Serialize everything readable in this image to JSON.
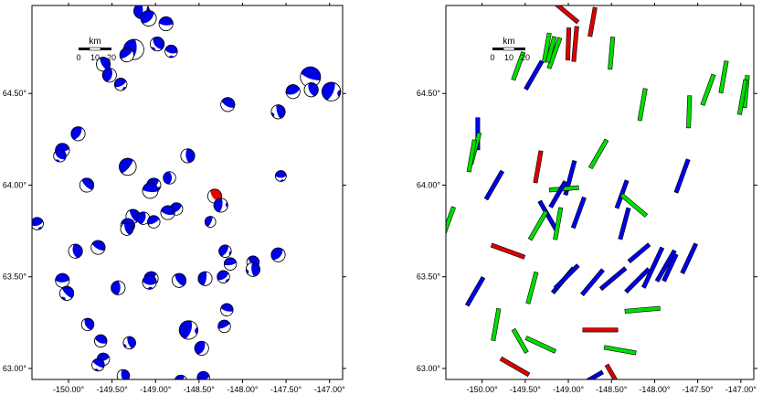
{
  "colors": {
    "focal_primary": "#0000e6",
    "focal_highlight": "#e60000",
    "axis_ok": "#00dd00",
    "axis_flagged": "#dd0000",
    "axis_blue": "#0000e6",
    "frame": "#000000"
  },
  "shared_axes": {
    "lat_ticks": [
      "63.00°",
      "63.50°",
      "64.00°",
      "64.50°"
    ],
    "lon_ticks": [
      "-150.00°",
      "-149.50°",
      "-149.00°",
      "-148.50°",
      "-148.00°",
      "-147.50°",
      "-147.00°"
    ],
    "lat_range": [
      62.94,
      64.98
    ],
    "lon_range": [
      -150.42,
      -146.85
    ]
  },
  "panels": [
    {
      "name": "focal-mechanism-map",
      "scale_bar": {
        "title": "km",
        "ticks": [
          "0",
          "10",
          "20"
        ]
      },
      "events": [
        {
          "lon": -149.16,
          "lat": 64.95,
          "size": 1.0
        },
        {
          "lon": -149.08,
          "lat": 64.91,
          "size": 1.0
        },
        {
          "lon": -148.88,
          "lat": 64.88,
          "size": 0.9
        },
        {
          "lon": -148.98,
          "lat": 64.77,
          "size": 0.9
        },
        {
          "lon": -149.25,
          "lat": 64.74,
          "size": 1.3
        },
        {
          "lon": -149.33,
          "lat": 64.71,
          "size": 0.9
        },
        {
          "lon": -148.82,
          "lat": 64.73,
          "size": 0.8
        },
        {
          "lon": -149.6,
          "lat": 64.66,
          "size": 0.9
        },
        {
          "lon": -149.53,
          "lat": 64.6,
          "size": 0.9
        },
        {
          "lon": -149.4,
          "lat": 64.55,
          "size": 0.8
        },
        {
          "lon": -147.22,
          "lat": 64.59,
          "size": 1.3
        },
        {
          "lon": -147.21,
          "lat": 64.52,
          "size": 0.9
        },
        {
          "lon": -146.98,
          "lat": 64.51,
          "size": 1.2
        },
        {
          "lon": -147.42,
          "lat": 64.51,
          "size": 0.9
        },
        {
          "lon": -148.17,
          "lat": 64.44,
          "size": 0.9
        },
        {
          "lon": -147.59,
          "lat": 64.4,
          "size": 0.9
        },
        {
          "lon": -149.89,
          "lat": 64.28,
          "size": 0.9
        },
        {
          "lon": -150.07,
          "lat": 64.19,
          "size": 0.9
        },
        {
          "lon": -150.1,
          "lat": 64.16,
          "size": 0.8
        },
        {
          "lon": -148.63,
          "lat": 64.16,
          "size": 0.9
        },
        {
          "lon": -149.32,
          "lat": 64.1,
          "size": 1.1
        },
        {
          "lon": -147.56,
          "lat": 64.05,
          "size": 0.7
        },
        {
          "lon": -149.79,
          "lat": 64.0,
          "size": 0.9
        },
        {
          "lon": -148.84,
          "lat": 64.04,
          "size": 0.8
        },
        {
          "lon": -149.02,
          "lat": 64.0,
          "size": 0.9
        },
        {
          "lon": -149.06,
          "lat": 63.97,
          "size": 1.0
        },
        {
          "lon": -148.32,
          "lat": 63.94,
          "size": 0.9,
          "highlight": true
        },
        {
          "lon": -148.25,
          "lat": 63.89,
          "size": 0.9
        },
        {
          "lon": -148.76,
          "lat": 63.87,
          "size": 0.8
        },
        {
          "lon": -148.86,
          "lat": 63.85,
          "size": 0.9
        },
        {
          "lon": -149.26,
          "lat": 63.83,
          "size": 0.9
        },
        {
          "lon": -149.14,
          "lat": 63.82,
          "size": 0.8
        },
        {
          "lon": -149.02,
          "lat": 63.8,
          "size": 0.8
        },
        {
          "lon": -149.32,
          "lat": 63.78,
          "size": 0.9
        },
        {
          "lon": -149.33,
          "lat": 63.76,
          "size": 0.8
        },
        {
          "lon": -148.37,
          "lat": 63.8,
          "size": 0.7
        },
        {
          "lon": -150.36,
          "lat": 63.79,
          "size": 0.8
        },
        {
          "lon": -149.66,
          "lat": 63.66,
          "size": 0.9
        },
        {
          "lon": -149.92,
          "lat": 63.64,
          "size": 0.9
        },
        {
          "lon": -148.2,
          "lat": 63.64,
          "size": 0.8
        },
        {
          "lon": -148.14,
          "lat": 63.57,
          "size": 0.8
        },
        {
          "lon": -147.88,
          "lat": 63.58,
          "size": 0.8
        },
        {
          "lon": -147.88,
          "lat": 63.54,
          "size": 0.9
        },
        {
          "lon": -147.59,
          "lat": 63.62,
          "size": 0.9
        },
        {
          "lon": -150.07,
          "lat": 63.48,
          "size": 0.9
        },
        {
          "lon": -150.02,
          "lat": 63.41,
          "size": 0.9
        },
        {
          "lon": -149.43,
          "lat": 63.44,
          "size": 0.9
        },
        {
          "lon": -149.05,
          "lat": 63.49,
          "size": 0.9
        },
        {
          "lon": -149.07,
          "lat": 63.47,
          "size": 0.9
        },
        {
          "lon": -148.73,
          "lat": 63.48,
          "size": 0.9
        },
        {
          "lon": -148.43,
          "lat": 63.49,
          "size": 0.9
        },
        {
          "lon": -148.22,
          "lat": 63.5,
          "size": 0.8
        },
        {
          "lon": -148.18,
          "lat": 63.32,
          "size": 0.8
        },
        {
          "lon": -149.78,
          "lat": 63.24,
          "size": 0.8
        },
        {
          "lon": -148.62,
          "lat": 63.21,
          "size": 1.2
        },
        {
          "lon": -148.21,
          "lat": 63.23,
          "size": 0.8
        },
        {
          "lon": -149.63,
          "lat": 63.15,
          "size": 0.8
        },
        {
          "lon": -149.3,
          "lat": 63.14,
          "size": 0.8
        },
        {
          "lon": -148.47,
          "lat": 63.11,
          "size": 0.9
        },
        {
          "lon": -149.6,
          "lat": 63.05,
          "size": 0.8
        },
        {
          "lon": -149.66,
          "lat": 63.02,
          "size": 0.8
        },
        {
          "lon": -149.37,
          "lat": 62.96,
          "size": 0.8
        },
        {
          "lon": -148.71,
          "lat": 62.93,
          "size": 0.8
        },
        {
          "lon": -148.45,
          "lat": 62.95,
          "size": 0.8
        }
      ]
    },
    {
      "name": "axis-orientation-map",
      "scale_bar": {
        "title": "km",
        "ticks": [
          "0",
          "10",
          "20"
        ]
      },
      "bars": [
        {
          "lon": -149.02,
          "lat": 64.94,
          "angle": -40,
          "len": 20,
          "c": "red"
        },
        {
          "lon": -148.72,
          "lat": 64.89,
          "angle": 80,
          "len": 20,
          "c": "red"
        },
        {
          "lon": -149.0,
          "lat": 64.77,
          "angle": 88,
          "len": 22,
          "c": "red"
        },
        {
          "lon": -148.92,
          "lat": 64.77,
          "angle": 85,
          "len": 24,
          "c": "red"
        },
        {
          "lon": -149.25,
          "lat": 64.75,
          "angle": 80,
          "len": 20,
          "c": "green"
        },
        {
          "lon": -149.16,
          "lat": 64.72,
          "angle": 70,
          "len": 22,
          "c": "green"
        },
        {
          "lon": -149.2,
          "lat": 64.74,
          "angle": 75,
          "len": 18,
          "c": "green"
        },
        {
          "lon": -148.5,
          "lat": 64.72,
          "angle": 85,
          "len": 22,
          "c": "green"
        },
        {
          "lon": -149.58,
          "lat": 64.65,
          "angle": 70,
          "len": 20,
          "c": "green"
        },
        {
          "lon": -149.4,
          "lat": 64.6,
          "angle": 60,
          "len": 22,
          "c": "blue"
        },
        {
          "lon": -147.2,
          "lat": 64.59,
          "angle": 80,
          "len": 22,
          "c": "green"
        },
        {
          "lon": -147.38,
          "lat": 64.52,
          "angle": 70,
          "len": 22,
          "c": "green"
        },
        {
          "lon": -146.94,
          "lat": 64.51,
          "angle": 85,
          "len": 22,
          "c": "green"
        },
        {
          "lon": -146.98,
          "lat": 64.48,
          "angle": 80,
          "len": 24,
          "c": "green"
        },
        {
          "lon": -148.14,
          "lat": 64.44,
          "angle": 80,
          "len": 22,
          "c": "green"
        },
        {
          "lon": -147.6,
          "lat": 64.4,
          "angle": 88,
          "len": 22,
          "c": "green"
        },
        {
          "lon": -150.05,
          "lat": 64.28,
          "angle": 90,
          "len": 22,
          "c": "blue"
        },
        {
          "lon": -150.08,
          "lat": 64.2,
          "angle": 75,
          "len": 22,
          "c": "green"
        },
        {
          "lon": -150.12,
          "lat": 64.16,
          "angle": 80,
          "len": 22,
          "c": "green"
        },
        {
          "lon": -148.65,
          "lat": 64.17,
          "angle": 60,
          "len": 22,
          "c": "green"
        },
        {
          "lon": -149.35,
          "lat": 64.1,
          "angle": 80,
          "len": 22,
          "c": "red"
        },
        {
          "lon": -147.68,
          "lat": 64.05,
          "angle": 70,
          "len": 24,
          "c": "blue"
        },
        {
          "lon": -149.86,
          "lat": 64.0,
          "angle": 60,
          "len": 22,
          "c": "blue"
        },
        {
          "lon": -148.98,
          "lat": 64.04,
          "angle": 75,
          "len": 24,
          "c": "blue"
        },
        {
          "lon": -149.05,
          "lat": 63.98,
          "angle": 5,
          "len": 20,
          "c": "green"
        },
        {
          "lon": -149.12,
          "lat": 63.95,
          "angle": 60,
          "len": 20,
          "c": "blue"
        },
        {
          "lon": -148.38,
          "lat": 63.95,
          "angle": 70,
          "len": 20,
          "c": "blue"
        },
        {
          "lon": -148.24,
          "lat": 63.89,
          "angle": -40,
          "len": 22,
          "c": "green"
        },
        {
          "lon": -148.88,
          "lat": 63.85,
          "angle": 70,
          "len": 22,
          "c": "blue"
        },
        {
          "lon": -149.23,
          "lat": 63.83,
          "angle": -60,
          "len": 24,
          "c": "blue"
        },
        {
          "lon": -149.35,
          "lat": 63.78,
          "angle": 60,
          "len": 22,
          "c": "green"
        },
        {
          "lon": -149.12,
          "lat": 63.79,
          "angle": 80,
          "len": 22,
          "c": "green"
        },
        {
          "lon": -148.35,
          "lat": 63.79,
          "angle": 75,
          "len": 22,
          "c": "blue"
        },
        {
          "lon": -150.4,
          "lat": 63.79,
          "angle": 70,
          "len": 24,
          "c": "green"
        },
        {
          "lon": -149.7,
          "lat": 63.64,
          "angle": -20,
          "len": 24,
          "c": "red"
        },
        {
          "lon": -148.18,
          "lat": 63.63,
          "angle": 40,
          "len": 18,
          "c": "blue"
        },
        {
          "lon": -148.02,
          "lat": 63.55,
          "angle": 65,
          "len": 30,
          "c": "blue"
        },
        {
          "lon": -147.87,
          "lat": 63.56,
          "angle": 60,
          "len": 24,
          "c": "blue"
        },
        {
          "lon": -147.82,
          "lat": 63.55,
          "angle": 65,
          "len": 20,
          "c": "blue"
        },
        {
          "lon": -147.6,
          "lat": 63.6,
          "angle": 65,
          "len": 22,
          "c": "blue"
        },
        {
          "lon": -150.08,
          "lat": 63.42,
          "angle": 60,
          "len": 22,
          "c": "blue"
        },
        {
          "lon": -149.42,
          "lat": 63.44,
          "angle": 75,
          "len": 22,
          "c": "green"
        },
        {
          "lon": -149.06,
          "lat": 63.48,
          "angle": 50,
          "len": 22,
          "c": "blue"
        },
        {
          "lon": -149.02,
          "lat": 63.5,
          "angle": 45,
          "len": 22,
          "c": "blue"
        },
        {
          "lon": -148.72,
          "lat": 63.47,
          "angle": 50,
          "len": 22,
          "c": "blue"
        },
        {
          "lon": -148.48,
          "lat": 63.49,
          "angle": 40,
          "len": 22,
          "c": "blue"
        },
        {
          "lon": -148.2,
          "lat": 63.48,
          "angle": 45,
          "len": 22,
          "c": "blue"
        },
        {
          "lon": -148.14,
          "lat": 63.32,
          "angle": 5,
          "len": 24,
          "c": "green"
        },
        {
          "lon": -149.84,
          "lat": 63.24,
          "angle": 80,
          "len": 22,
          "c": "green"
        },
        {
          "lon": -148.63,
          "lat": 63.21,
          "angle": 0,
          "len": 24,
          "c": "red"
        },
        {
          "lon": -149.56,
          "lat": 63.15,
          "angle": -60,
          "len": 18,
          "c": "green"
        },
        {
          "lon": -149.32,
          "lat": 63.13,
          "angle": -25,
          "len": 22,
          "c": "green"
        },
        {
          "lon": -148.4,
          "lat": 63.1,
          "angle": -10,
          "len": 22,
          "c": "green"
        },
        {
          "lon": -149.62,
          "lat": 63.01,
          "angle": -30,
          "len": 22,
          "c": "red"
        },
        {
          "lon": -148.47,
          "lat": 62.95,
          "angle": -60,
          "len": 20,
          "c": "red"
        },
        {
          "lon": -148.75,
          "lat": 62.94,
          "angle": 30,
          "len": 20,
          "c": "blue"
        }
      ]
    }
  ]
}
